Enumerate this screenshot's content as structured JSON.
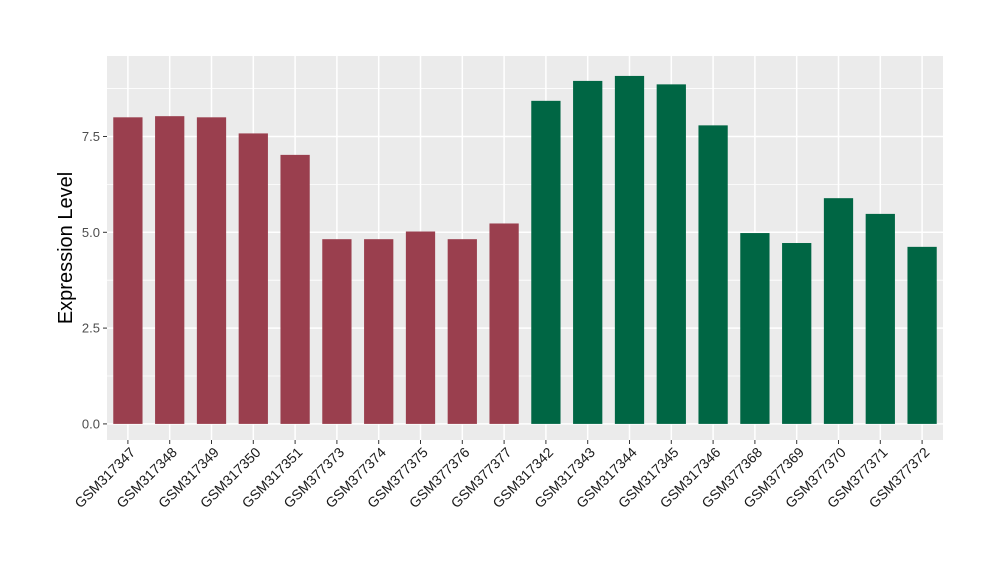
{
  "chart_data": {
    "type": "bar",
    "title": "",
    "xlabel": "",
    "ylabel": "Expression Level",
    "ylim": [
      -0.42,
      9.6
    ],
    "yticks": [
      0.0,
      2.5,
      5.0,
      7.5
    ],
    "ytick_labels": [
      "0.0",
      "2.5",
      "5.0",
      "7.5"
    ],
    "grid": true,
    "legend": "none",
    "categories": [
      "GSM317347",
      "GSM317348",
      "GSM317349",
      "GSM317350",
      "GSM317351",
      "GSM377373",
      "GSM377374",
      "GSM377375",
      "GSM377376",
      "GSM377377",
      "GSM317342",
      "GSM317343",
      "GSM317344",
      "GSM317345",
      "GSM317346",
      "GSM377368",
      "GSM377369",
      "GSM377370",
      "GSM377371",
      "GSM377372"
    ],
    "values": [
      8.0,
      8.03,
      8.0,
      7.58,
      7.02,
      4.82,
      4.82,
      5.02,
      4.82,
      5.23,
      8.43,
      8.95,
      9.08,
      8.86,
      7.79,
      4.98,
      4.72,
      5.89,
      5.48,
      4.62
    ],
    "colors": [
      "#9a3f4e",
      "#9a3f4e",
      "#9a3f4e",
      "#9a3f4e",
      "#9a3f4e",
      "#9a3f4e",
      "#9a3f4e",
      "#9a3f4e",
      "#9a3f4e",
      "#9a3f4e",
      "#006644",
      "#006644",
      "#006644",
      "#006644",
      "#006644",
      "#006644",
      "#006644",
      "#006644",
      "#006644",
      "#006644"
    ],
    "panel_background": "#ebebeb",
    "grid_color": "#ffffff"
  }
}
